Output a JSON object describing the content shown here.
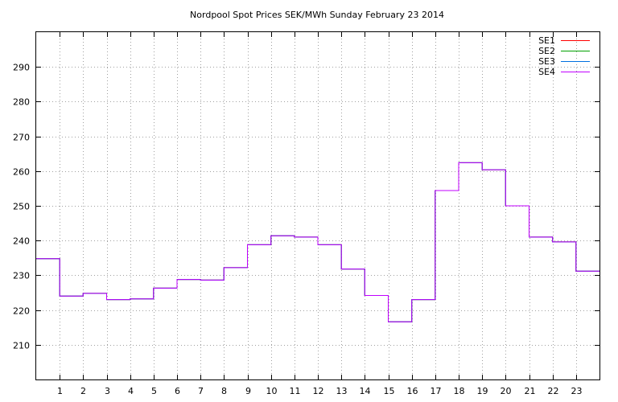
{
  "chart_data": {
    "type": "line",
    "step": true,
    "title": "Nordpool Spot Prices SEK/MWh Sunday February 23 2014",
    "xlabel": "",
    "ylabel": "",
    "xlim": [
      0,
      24
    ],
    "ylim": [
      200,
      300
    ],
    "xticks": [
      1,
      2,
      3,
      4,
      5,
      6,
      7,
      8,
      9,
      10,
      11,
      12,
      13,
      14,
      15,
      16,
      17,
      18,
      19,
      20,
      21,
      22,
      23
    ],
    "yticks": [
      210,
      220,
      230,
      240,
      250,
      260,
      270,
      280,
      290
    ],
    "grid": true,
    "legend_position": "top-right",
    "x": [
      0,
      1,
      2,
      3,
      4,
      5,
      6,
      7,
      8,
      9,
      10,
      11,
      12,
      13,
      14,
      15,
      16,
      17,
      18,
      19,
      20,
      21,
      22,
      23
    ],
    "series": [
      {
        "name": "SE1",
        "color": "#ff0000",
        "values": [
          234.8,
          224.0,
          224.8,
          223.0,
          223.2,
          226.3,
          228.8,
          228.6,
          232.2,
          238.8,
          241.4,
          241.0,
          238.8,
          231.8,
          224.2,
          216.6,
          223.0,
          254.4,
          262.4,
          260.4,
          250.0,
          241.0,
          239.6,
          231.2
        ]
      },
      {
        "name": "SE2",
        "color": "#00a000",
        "values": [
          234.8,
          224.0,
          224.8,
          223.0,
          223.2,
          226.3,
          228.8,
          228.6,
          232.2,
          238.8,
          241.4,
          241.0,
          238.8,
          231.8,
          224.2,
          216.6,
          223.0,
          254.4,
          262.4,
          260.4,
          250.0,
          241.0,
          239.6,
          231.2
        ]
      },
      {
        "name": "SE3",
        "color": "#0070e0",
        "values": [
          234.8,
          224.0,
          224.8,
          223.0,
          223.2,
          226.3,
          228.8,
          228.6,
          232.2,
          238.8,
          241.4,
          241.0,
          238.8,
          231.8,
          224.2,
          216.6,
          223.0,
          254.4,
          262.4,
          260.4,
          250.0,
          241.0,
          239.6,
          231.2
        ]
      },
      {
        "name": "SE4",
        "color": "#c000ff",
        "values": [
          234.8,
          224.0,
          224.8,
          223.0,
          223.2,
          226.3,
          228.8,
          228.6,
          232.2,
          238.8,
          241.4,
          241.0,
          238.8,
          231.8,
          224.2,
          216.6,
          223.0,
          254.4,
          262.4,
          260.4,
          250.0,
          241.0,
          239.6,
          231.2
        ]
      }
    ]
  }
}
